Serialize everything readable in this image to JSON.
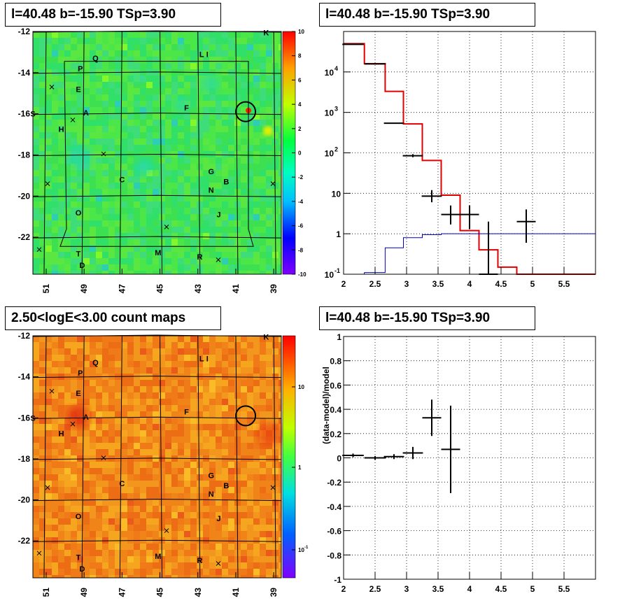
{
  "panels": {
    "map1_title": "l=40.48 b=-15.90 TSp=3.90",
    "spec_title": "l=40.48 b=-15.90 TSp=3.90",
    "map2_title": "2.50<logE<3.00 count maps",
    "resid_title": "l=40.48 b=-15.90 TSp=3.90",
    "resid_ylabel": "(data-model)/model"
  },
  "sources": [
    {
      "name": "K",
      "l": 39.4,
      "b": -12.05
    },
    {
      "name": "L",
      "l": 42.8,
      "b": -13.1
    },
    {
      "name": "I",
      "l": 42.5,
      "b": -13.1
    },
    {
      "name": "Q",
      "l": 48.4,
      "b": -13.3
    },
    {
      "name": "P",
      "l": 49.2,
      "b": -13.8
    },
    {
      "name": "E",
      "l": 49.3,
      "b": -14.8
    },
    {
      "name": "A",
      "l": 48.9,
      "b": -15.95
    },
    {
      "name": "S",
      "l": 51.7,
      "b": -16.0
    },
    {
      "name": "F",
      "l": 43.6,
      "b": -15.7
    },
    {
      "name": "H",
      "l": 50.2,
      "b": -16.75
    },
    {
      "name": "C",
      "l": 47.0,
      "b": -19.2
    },
    {
      "name": "G",
      "l": 42.3,
      "b": -18.8
    },
    {
      "name": "B",
      "l": 41.5,
      "b": -19.3
    },
    {
      "name": "N",
      "l": 42.3,
      "b": -19.7
    },
    {
      "name": "O",
      "l": 49.3,
      "b": -20.8
    },
    {
      "name": "J",
      "l": 41.9,
      "b": -20.9
    },
    {
      "name": "T",
      "l": 49.3,
      "b": -22.8
    },
    {
      "name": "M",
      "l": 45.1,
      "b": -22.75
    },
    {
      "name": "R",
      "l": 42.9,
      "b": -22.95
    },
    {
      "name": "D",
      "l": 49.1,
      "b": -23.35
    }
  ],
  "map_axes": {
    "x_ticks": [
      "51",
      "49",
      "47",
      "45",
      "43",
      "41",
      "39"
    ],
    "y_ticks": [
      "-12",
      "-14",
      "-16",
      "-18",
      "-20",
      "-22"
    ],
    "cb1_ticks": [
      "10",
      "8",
      "6",
      "4",
      "2",
      "0",
      "-2",
      "-4",
      "-6",
      "-8",
      "-10"
    ],
    "cb2_ticks": [
      "10",
      "1",
      "10"
    ],
    "cb2_exp": "-1"
  },
  "chart_data": [
    {
      "type": "line",
      "scale_y": "log",
      "xlim": [
        2,
        6
      ],
      "ylim": [
        0.1,
        100000
      ],
      "x_ticks": [
        "2",
        "2.5",
        "3",
        "3.5",
        "4",
        "4.5",
        "5",
        "5.5"
      ],
      "y_ticks": [
        {
          "v": 0.1,
          "base": "10",
          "exp": "-1"
        },
        {
          "v": 1,
          "base": "1",
          "exp": ""
        },
        {
          "v": 10,
          "base": "10",
          "exp": ""
        },
        {
          "v": 100,
          "base": "10",
          "exp": "2"
        },
        {
          "v": 1000,
          "base": "10",
          "exp": "3"
        },
        {
          "v": 10000,
          "base": "10",
          "exp": "4"
        }
      ],
      "series": [
        {
          "color": "#e00000",
          "edges": [
            2,
            2.33,
            2.66,
            2.95,
            3.25,
            3.55,
            3.85,
            4.15,
            4.45,
            4.75,
            6
          ],
          "values": [
            50000,
            16000,
            3300,
            520,
            65,
            9,
            1.2,
            0.4,
            0.15,
            0.1
          ]
        },
        {
          "color": "#0000c0",
          "edges": [
            2,
            2.33,
            2.66,
            2.95,
            3.25,
            3.55,
            3.85,
            4.15,
            4.45,
            4.75,
            6
          ],
          "values": [
            0.1,
            0.11,
            0.45,
            0.8,
            0.95,
            1.0,
            1.0,
            1.0,
            1.0,
            1.0
          ]
        }
      ],
      "points": [
        {
          "x": 2.15,
          "y": 48000,
          "xerr": 0.17,
          "ylo": 47000,
          "yhi": 49000
        },
        {
          "x": 2.5,
          "y": 15800,
          "xerr": 0.17,
          "ylo": 15500,
          "yhi": 16100
        },
        {
          "x": 2.8,
          "y": 540,
          "xerr": 0.16,
          "ylo": 520,
          "yhi": 560
        },
        {
          "x": 3.1,
          "y": 85,
          "xerr": 0.16,
          "ylo": 78,
          "yhi": 93
        },
        {
          "x": 3.4,
          "y": 8.5,
          "xerr": 0.16,
          "ylo": 6,
          "yhi": 12
        },
        {
          "x": 3.7,
          "y": 3,
          "xerr": 0.15,
          "ylo": 1.7,
          "yhi": 5
        },
        {
          "x": 4.0,
          "y": 3,
          "xerr": 0.15,
          "ylo": 1.3,
          "yhi": 5
        },
        {
          "x": 4.3,
          "y": 0.1,
          "xerr": 0.15,
          "ylo": 0.1,
          "yhi": 2
        },
        {
          "x": 4.9,
          "y": 2,
          "xerr": 0.15,
          "ylo": 0.6,
          "yhi": 4
        }
      ]
    },
    {
      "type": "scatter",
      "xlim": [
        2,
        6
      ],
      "ylim": [
        -1,
        1
      ],
      "x_ticks": [
        "2",
        "2.5",
        "3",
        "3.5",
        "4",
        "4.5",
        "5",
        "5.5"
      ],
      "y_ticks": [
        "1",
        "0.8",
        "0.6",
        "0.4",
        "0.2",
        "0",
        "-0.2",
        "-0.4",
        "-0.6",
        "-0.8",
        "-1"
      ],
      "ylabel": "(data-model)/model",
      "points": [
        {
          "x": 2.15,
          "y": 0.02,
          "xerr": 0.17,
          "yerr": 0.015
        },
        {
          "x": 2.5,
          "y": 0.0,
          "xerr": 0.17,
          "yerr": 0.015
        },
        {
          "x": 2.8,
          "y": 0.01,
          "xerr": 0.16,
          "yerr": 0.02
        },
        {
          "x": 3.1,
          "y": 0.04,
          "xerr": 0.16,
          "yerr": 0.05
        },
        {
          "x": 3.4,
          "y": 0.33,
          "xerr": 0.15,
          "yerr": 0.15
        },
        {
          "x": 3.7,
          "y": 0.07,
          "xerr": 0.15,
          "yerr": 0.36
        }
      ]
    }
  ]
}
